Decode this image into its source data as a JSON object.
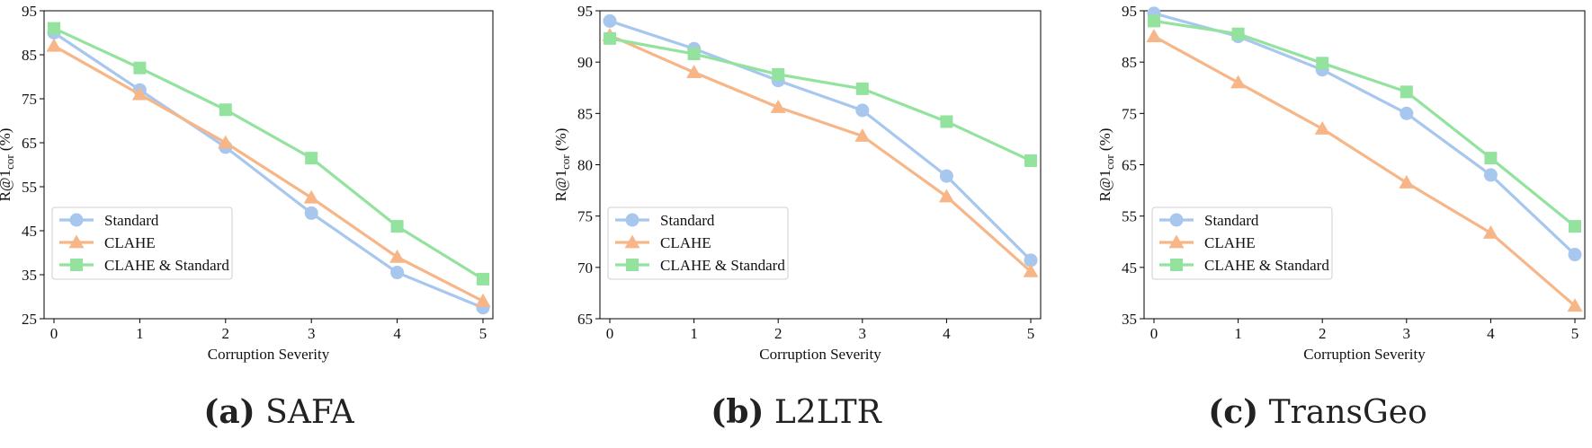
{
  "chart_data": [
    {
      "type": "line",
      "caption_tag": "(a)",
      "caption_name": "SAFA",
      "xlabel": "Corruption Severity",
      "ylabel_main": "R@1",
      "ylabel_sub": "cor",
      "ylabel_unit": "(%)",
      "x": [
        0,
        1,
        2,
        3,
        4,
        5
      ],
      "xlim": [
        0,
        5
      ],
      "ylim": [
        25,
        95
      ],
      "yticks": [
        25,
        35,
        45,
        55,
        65,
        75,
        85,
        95
      ],
      "legend_position": "lower-left",
      "series": [
        {
          "name": "Standard",
          "marker": "circle",
          "color": "#a7c7ee",
          "values": [
            90,
            77,
            64,
            49,
            35.5,
            27.5
          ]
        },
        {
          "name": "CLAHE",
          "marker": "triangle",
          "color": "#f7b687",
          "values": [
            87,
            76,
            65,
            52.5,
            39,
            29
          ]
        },
        {
          "name": "CLAHE & Standard",
          "marker": "square",
          "color": "#93e39f",
          "values": [
            91,
            82,
            72.5,
            61.5,
            46,
            34
          ]
        }
      ]
    },
    {
      "type": "line",
      "caption_tag": "(b)",
      "caption_name": "L2LTR",
      "xlabel": "Corruption Severity",
      "ylabel_main": "R@1",
      "ylabel_sub": "cor",
      "ylabel_unit": "(%)",
      "x": [
        0,
        1,
        2,
        3,
        4,
        5
      ],
      "xlim": [
        0,
        5
      ],
      "ylim": [
        65,
        95
      ],
      "yticks": [
        65,
        70,
        75,
        80,
        85,
        90,
        95
      ],
      "legend_position": "lower-left",
      "series": [
        {
          "name": "Standard",
          "marker": "circle",
          "color": "#a7c7ee",
          "values": [
            94,
            91.3,
            88.2,
            85.3,
            78.9,
            70.7
          ]
        },
        {
          "name": "CLAHE",
          "marker": "triangle",
          "color": "#f7b687",
          "values": [
            92.6,
            89,
            85.6,
            82.8,
            76.9,
            69.6
          ]
        },
        {
          "name": "CLAHE & Standard",
          "marker": "square",
          "color": "#93e39f",
          "values": [
            92.3,
            90.8,
            88.8,
            87.4,
            84.2,
            80.4
          ]
        }
      ]
    },
    {
      "type": "line",
      "caption_tag": "(c)",
      "caption_name": "TransGeo",
      "xlabel": "Corruption Severity",
      "ylabel_main": "R@1",
      "ylabel_sub": "cor",
      "ylabel_unit": "(%)",
      "x": [
        0,
        1,
        2,
        3,
        4,
        5
      ],
      "xlim": [
        0,
        5
      ],
      "ylim": [
        35,
        95
      ],
      "yticks": [
        35,
        45,
        55,
        65,
        75,
        85,
        95
      ],
      "legend_position": "lower-left",
      "series": [
        {
          "name": "Standard",
          "marker": "circle",
          "color": "#a7c7ee",
          "values": [
            94.5,
            90,
            83.5,
            75,
            63,
            47.5
          ]
        },
        {
          "name": "CLAHE",
          "marker": "triangle",
          "color": "#f7b687",
          "values": [
            90,
            81,
            72,
            61.5,
            51.7,
            37.5
          ]
        },
        {
          "name": "CLAHE & Standard",
          "marker": "square",
          "color": "#93e39f",
          "values": [
            93,
            90.5,
            84.8,
            79.2,
            66.3,
            53
          ]
        }
      ]
    }
  ]
}
